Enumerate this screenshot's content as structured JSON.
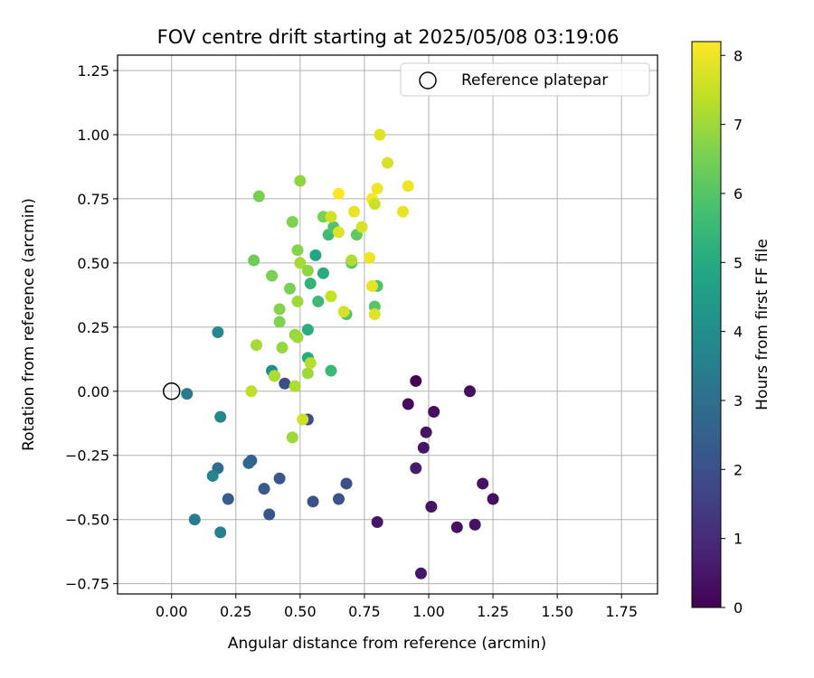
{
  "chart_data": {
    "type": "scatter",
    "title": "FOV centre drift starting at 2025/05/08 03:19:06",
    "xlabel": "Angular distance from reference (arcmin)",
    "ylabel": "Rotation from reference (arcmin)",
    "xlim": [
      -0.21,
      1.89
    ],
    "ylim": [
      -0.79,
      1.31
    ],
    "xticks": [
      "0.00",
      "0.25",
      "0.50",
      "0.75",
      "1.00",
      "1.25",
      "1.50",
      "1.75"
    ],
    "xtick_values": [
      0,
      0.25,
      0.5,
      0.75,
      1.0,
      1.25,
      1.5,
      1.75
    ],
    "yticks": [
      "−0.75",
      "−0.50",
      "−0.25",
      "0.00",
      "0.25",
      "0.50",
      "0.75",
      "1.00",
      "1.25"
    ],
    "ytick_values": [
      -0.75,
      -0.5,
      -0.25,
      0,
      0.25,
      0.5,
      0.75,
      1.0,
      1.25
    ],
    "grid": true,
    "colormap": "viridis",
    "colorbar": {
      "label": "Hours from first FF file",
      "range": [
        0,
        8.2
      ],
      "ticks": [
        "0",
        "1",
        "2",
        "3",
        "4",
        "5",
        "6",
        "7",
        "8"
      ],
      "tick_values": [
        0,
        1,
        2,
        3,
        4,
        5,
        6,
        7,
        8
      ]
    },
    "legend": {
      "placement": "top-right",
      "entries": [
        "Reference platepar"
      ]
    },
    "reference_point": {
      "x": 0,
      "y": 0
    },
    "points": [
      {
        "x": 0.95,
        "y": 0.04,
        "c": 0.1
      },
      {
        "x": 0.92,
        "y": -0.05,
        "c": 0.2
      },
      {
        "x": 1.02,
        "y": -0.08,
        "c": 0.3
      },
      {
        "x": 0.99,
        "y": -0.16,
        "c": 0.4
      },
      {
        "x": 0.98,
        "y": -0.22,
        "c": 0.5
      },
      {
        "x": 0.95,
        "y": -0.3,
        "c": 0.6
      },
      {
        "x": 1.16,
        "y": 0.0,
        "c": 0.3
      },
      {
        "x": 1.21,
        "y": -0.36,
        "c": 0.4
      },
      {
        "x": 1.25,
        "y": -0.42,
        "c": 0.3
      },
      {
        "x": 1.01,
        "y": -0.45,
        "c": 0.4
      },
      {
        "x": 0.8,
        "y": -0.51,
        "c": 0.5
      },
      {
        "x": 1.11,
        "y": -0.53,
        "c": 0.3
      },
      {
        "x": 1.18,
        "y": -0.52,
        "c": 0.4
      },
      {
        "x": 0.97,
        "y": -0.71,
        "c": 0.5
      },
      {
        "x": 0.53,
        "y": -0.11,
        "c": 1.9
      },
      {
        "x": 0.44,
        "y": 0.03,
        "c": 1.9
      },
      {
        "x": 0.68,
        "y": -0.36,
        "c": 2.0
      },
      {
        "x": 0.65,
        "y": -0.42,
        "c": 2.1
      },
      {
        "x": 0.55,
        "y": -0.43,
        "c": 2.0
      },
      {
        "x": 0.42,
        "y": -0.34,
        "c": 2.2
      },
      {
        "x": 0.36,
        "y": -0.38,
        "c": 2.3
      },
      {
        "x": 0.38,
        "y": -0.48,
        "c": 2.2
      },
      {
        "x": 0.22,
        "y": -0.42,
        "c": 2.4
      },
      {
        "x": 0.31,
        "y": -0.27,
        "c": 2.6
      },
      {
        "x": 0.3,
        "y": -0.28,
        "c": 2.7
      },
      {
        "x": 0.18,
        "y": -0.3,
        "c": 2.9
      },
      {
        "x": 0.16,
        "y": -0.33,
        "c": 3.7
      },
      {
        "x": 0.09,
        "y": -0.5,
        "c": 3.4
      },
      {
        "x": 0.19,
        "y": -0.55,
        "c": 3.5
      },
      {
        "x": 0.19,
        "y": -0.1,
        "c": 3.7
      },
      {
        "x": 0.06,
        "y": -0.01,
        "c": 3.4
      },
      {
        "x": 0.18,
        "y": 0.23,
        "c": 3.8
      },
      {
        "x": 0.39,
        "y": 0.08,
        "c": 4.0
      },
      {
        "x": 0.4,
        "y": 0.06,
        "c": 4.2
      },
      {
        "x": 0.53,
        "y": 0.13,
        "c": 5.0
      },
      {
        "x": 0.53,
        "y": 0.24,
        "c": 5.1
      },
      {
        "x": 0.62,
        "y": 0.08,
        "c": 5.5
      },
      {
        "x": 0.56,
        "y": 0.53,
        "c": 4.8
      },
      {
        "x": 0.59,
        "y": 0.46,
        "c": 5.0
      },
      {
        "x": 0.54,
        "y": 0.42,
        "c": 5.3
      },
      {
        "x": 0.57,
        "y": 0.35,
        "c": 5.6
      },
      {
        "x": 0.61,
        "y": 0.61,
        "c": 5.6
      },
      {
        "x": 0.63,
        "y": 0.64,
        "c": 5.9
      },
      {
        "x": 0.68,
        "y": 0.3,
        "c": 5.9
      },
      {
        "x": 0.7,
        "y": 0.5,
        "c": 6.0
      },
      {
        "x": 0.72,
        "y": 0.61,
        "c": 6.2
      },
      {
        "x": 0.79,
        "y": 0.33,
        "c": 6.0
      },
      {
        "x": 0.8,
        "y": 0.41,
        "c": 5.9
      },
      {
        "x": 0.34,
        "y": 0.76,
        "c": 6.5
      },
      {
        "x": 0.32,
        "y": 0.51,
        "c": 6.4
      },
      {
        "x": 0.39,
        "y": 0.45,
        "c": 6.5
      },
      {
        "x": 0.46,
        "y": 0.4,
        "c": 6.5
      },
      {
        "x": 0.42,
        "y": 0.32,
        "c": 6.7
      },
      {
        "x": 0.42,
        "y": 0.27,
        "c": 6.6
      },
      {
        "x": 0.47,
        "y": 0.66,
        "c": 6.6
      },
      {
        "x": 0.49,
        "y": 0.55,
        "c": 6.7
      },
      {
        "x": 0.5,
        "y": 0.82,
        "c": 6.8
      },
      {
        "x": 0.5,
        "y": 0.5,
        "c": 7.1
      },
      {
        "x": 0.53,
        "y": 0.47,
        "c": 6.8
      },
      {
        "x": 0.49,
        "y": 0.35,
        "c": 7.0
      },
      {
        "x": 0.48,
        "y": 0.22,
        "c": 6.9
      },
      {
        "x": 0.49,
        "y": 0.21,
        "c": 7.0
      },
      {
        "x": 0.43,
        "y": 0.17,
        "c": 6.9
      },
      {
        "x": 0.33,
        "y": 0.18,
        "c": 7.1
      },
      {
        "x": 0.4,
        "y": 0.06,
        "c": 7.2
      },
      {
        "x": 0.53,
        "y": 0.07,
        "c": 7.0
      },
      {
        "x": 0.54,
        "y": 0.11,
        "c": 7.3
      },
      {
        "x": 0.48,
        "y": 0.02,
        "c": 7.2
      },
      {
        "x": 0.31,
        "y": 0.0,
        "c": 7.4
      },
      {
        "x": 0.47,
        "y": -0.18,
        "c": 7.0
      },
      {
        "x": 0.51,
        "y": -0.11,
        "c": 7.6
      },
      {
        "x": 0.59,
        "y": 0.68,
        "c": 6.5
      },
      {
        "x": 0.62,
        "y": 0.68,
        "c": 7.6
      },
      {
        "x": 0.65,
        "y": 0.62,
        "c": 7.8
      },
      {
        "x": 0.67,
        "y": 0.31,
        "c": 7.7
      },
      {
        "x": 0.62,
        "y": 0.37,
        "c": 7.5
      },
      {
        "x": 0.7,
        "y": 0.51,
        "c": 7.2
      },
      {
        "x": 0.71,
        "y": 0.7,
        "c": 7.9
      },
      {
        "x": 0.74,
        "y": 0.64,
        "c": 7.7
      },
      {
        "x": 0.65,
        "y": 0.77,
        "c": 8.2
      },
      {
        "x": 0.77,
        "y": 0.52,
        "c": 8.0
      },
      {
        "x": 0.78,
        "y": 0.41,
        "c": 7.9
      },
      {
        "x": 0.79,
        "y": 0.3,
        "c": 7.8
      },
      {
        "x": 0.78,
        "y": 0.75,
        "c": 8.1
      },
      {
        "x": 0.79,
        "y": 0.73,
        "c": 7.6
      },
      {
        "x": 0.8,
        "y": 0.79,
        "c": 8.0
      },
      {
        "x": 0.81,
        "y": 1.0,
        "c": 7.8
      },
      {
        "x": 0.84,
        "y": 0.89,
        "c": 7.7
      },
      {
        "x": 0.9,
        "y": 0.7,
        "c": 7.9
      },
      {
        "x": 0.92,
        "y": 0.8,
        "c": 8.0
      }
    ]
  }
}
